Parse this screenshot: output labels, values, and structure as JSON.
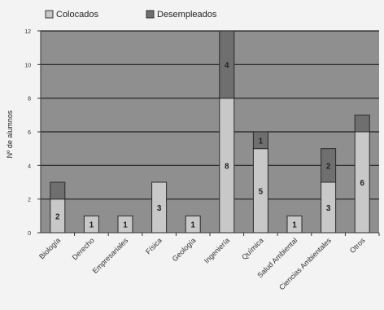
{
  "chart_data": {
    "type": "bar",
    "stacked": true,
    "categories": [
      "Biología",
      "Derecho",
      "Empresariales",
      "Física",
      "Geología",
      "Ingeniería",
      "Química",
      "Salud Ambiental",
      "Ciencias Ambientales",
      "Otros"
    ],
    "series": [
      {
        "name": "Colocados",
        "values": [
          2,
          1,
          1,
          3,
          1,
          8,
          5,
          1,
          3,
          6
        ],
        "color": "#c8c8c8"
      },
      {
        "name": "Desempleados",
        "values": [
          1,
          0,
          0,
          0,
          0,
          4,
          1,
          0,
          2,
          1
        ],
        "color": "#6f6f6f"
      }
    ],
    "data_labels": {
      "Colocados": [
        2,
        1,
        1,
        3,
        1,
        8,
        5,
        1,
        3,
        6
      ],
      "Desempleados": [
        null,
        null,
        null,
        null,
        null,
        4,
        1,
        null,
        2,
        null
      ]
    },
    "ylabel": "Nº de alumnos",
    "ylim": [
      0,
      12
    ],
    "yticks": [
      0,
      2,
      4,
      6,
      8,
      10,
      12
    ],
    "grid": true,
    "plot_background": "#8f8f8f",
    "legend_position": "top-left"
  }
}
